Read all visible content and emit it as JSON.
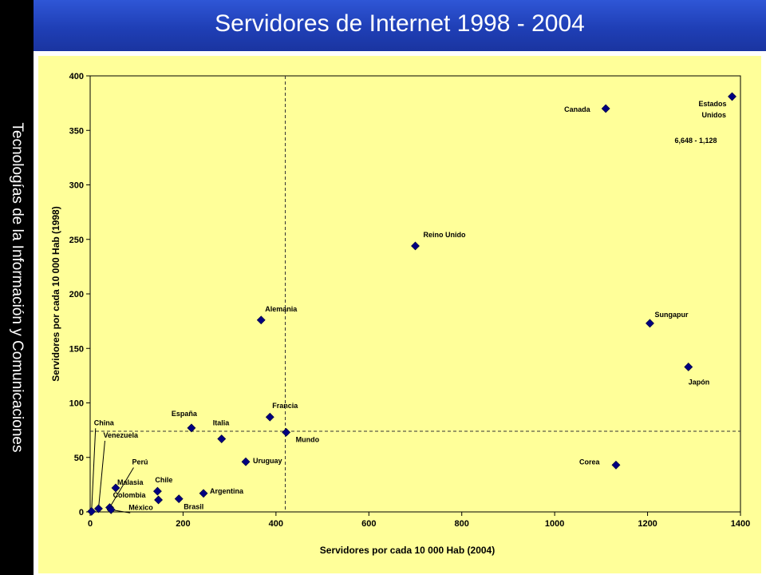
{
  "slide": {
    "title": "Servidores de Internet 1998 - 2004",
    "sidebar_text": "Tecnologías de la Información y Comunicaciones"
  },
  "colors": {
    "header_blue": "#1f3fb6",
    "plot_background": "#ffff99",
    "marker": "#000080",
    "sidebar": "#000000"
  },
  "chart_data": {
    "type": "scatter",
    "xlabel": "Servidores por cada 10 000 Hab (2004)",
    "ylabel": "Servidores por cada 10 000 Hab (1998)",
    "xlim": [
      0,
      1400
    ],
    "ylim": [
      0,
      400
    ],
    "xticks": [
      0,
      200,
      400,
      600,
      800,
      1000,
      1200,
      1400
    ],
    "yticks": [
      0,
      50,
      100,
      150,
      200,
      250,
      300,
      350,
      400
    ],
    "grid": false,
    "reference_lines": {
      "x": 420,
      "y": 74
    },
    "annotation": "6,648 - 1,128",
    "points": [
      {
        "label": "Estados Unidos",
        "x": 1382,
        "y": 381
      },
      {
        "label": "Canada",
        "x": 1110,
        "y": 370
      },
      {
        "label": "Reino Unido",
        "x": 700,
        "y": 244
      },
      {
        "label": "Alemania",
        "x": 368,
        "y": 176
      },
      {
        "label": "Sungapur",
        "x": 1205,
        "y": 173
      },
      {
        "label": "Japón",
        "x": 1288,
        "y": 133
      },
      {
        "label": "Francia",
        "x": 387,
        "y": 87
      },
      {
        "label": "España",
        "x": 218,
        "y": 77
      },
      {
        "label": "Mundo",
        "x": 422,
        "y": 73
      },
      {
        "label": "Italia",
        "x": 283,
        "y": 67
      },
      {
        "label": "Uruguay",
        "x": 335,
        "y": 46
      },
      {
        "label": "Corea",
        "x": 1132,
        "y": 43
      },
      {
        "label": "Malasia",
        "x": 55,
        "y": 22
      },
      {
        "label": "Chile",
        "x": 145,
        "y": 19
      },
      {
        "label": "Argentina",
        "x": 244,
        "y": 17
      },
      {
        "label": "Brasil",
        "x": 191,
        "y": 12
      },
      {
        "label": "Colombia",
        "x": 147,
        "y": 11
      },
      {
        "label": "Perú",
        "x": 42,
        "y": 4
      },
      {
        "label": "México",
        "x": 45,
        "y": 2
      },
      {
        "label": "Venezuela",
        "x": 18,
        "y": 3
      },
      {
        "label": "China",
        "x": 3,
        "y": 0.5
      }
    ]
  }
}
